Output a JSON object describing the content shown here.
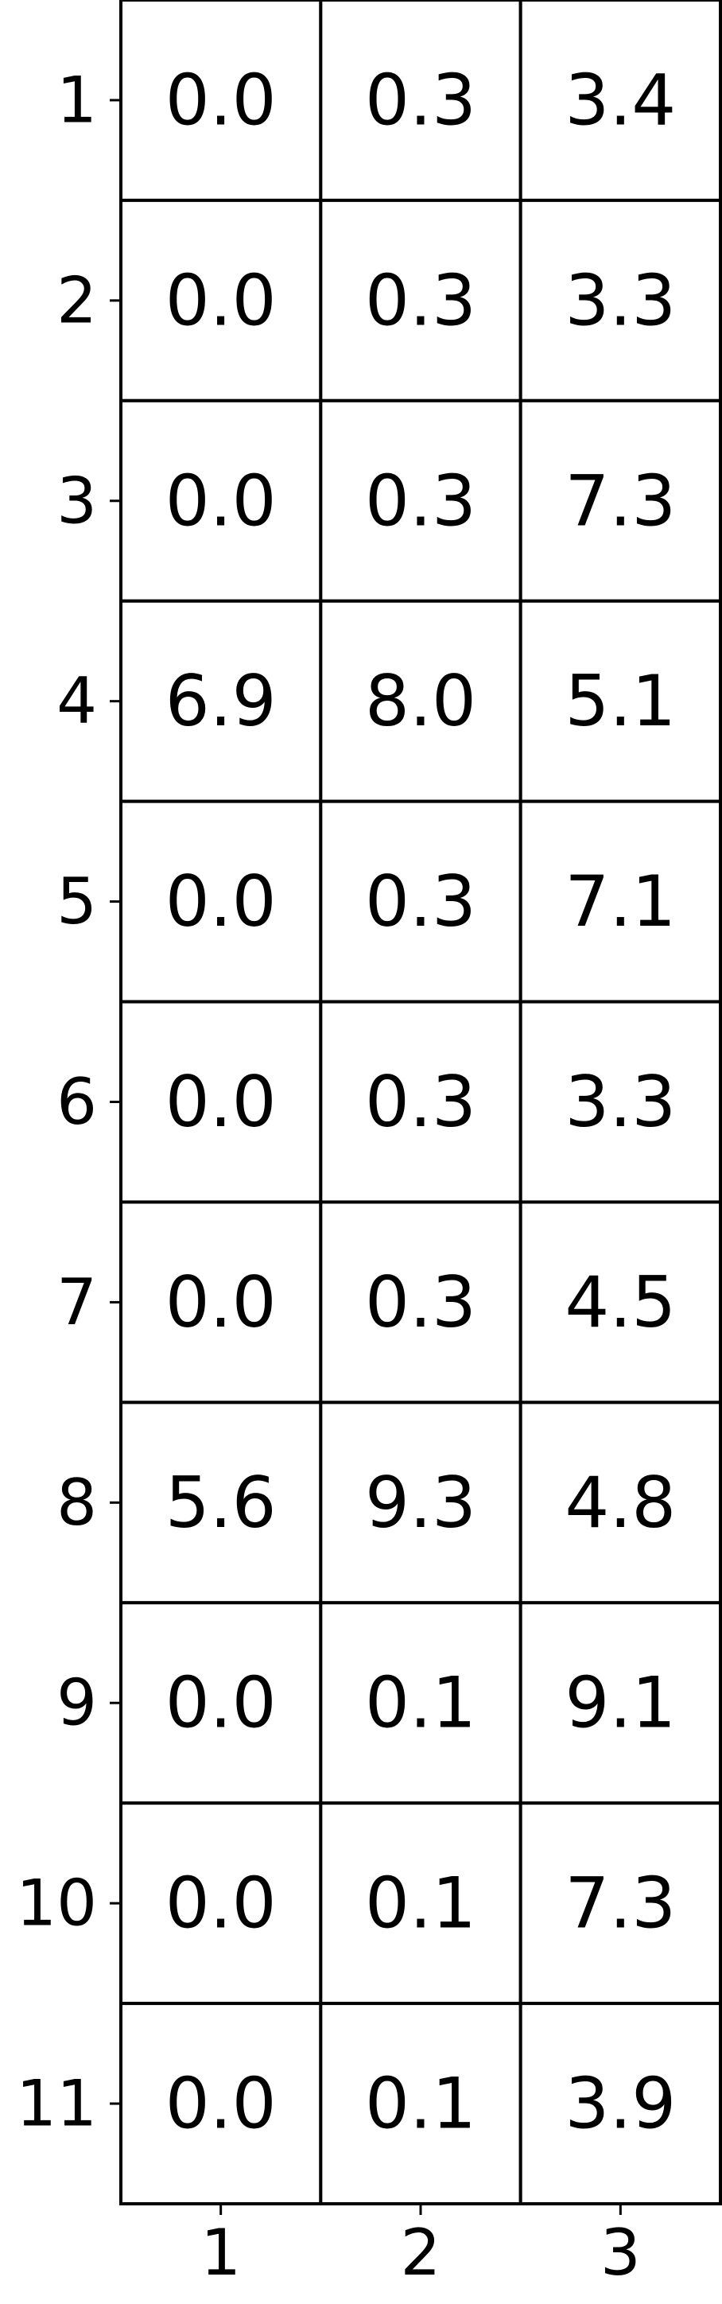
{
  "chart_data": {
    "type": "table",
    "columns": [
      "1",
      "2",
      "3"
    ],
    "rows": [
      "1",
      "2",
      "3",
      "4",
      "5",
      "6",
      "7",
      "8",
      "9",
      "10",
      "11"
    ],
    "values": [
      [
        "0.0",
        "0.3",
        "3.4"
      ],
      [
        "0.0",
        "0.3",
        "3.3"
      ],
      [
        "0.0",
        "0.3",
        "7.3"
      ],
      [
        "6.9",
        "8.0",
        "5.1"
      ],
      [
        "0.0",
        "0.3",
        "7.1"
      ],
      [
        "0.0",
        "0.3",
        "3.3"
      ],
      [
        "0.0",
        "0.3",
        "4.5"
      ],
      [
        "5.6",
        "9.3",
        "4.8"
      ],
      [
        "0.0",
        "0.1",
        "9.1"
      ],
      [
        "0.0",
        "0.1",
        "7.3"
      ],
      [
        "0.0",
        "0.1",
        "3.9"
      ]
    ],
    "grid": true,
    "colors": {
      "cell_fill": "#ffffff",
      "grid_line": "#000000",
      "text": "#000000"
    }
  }
}
